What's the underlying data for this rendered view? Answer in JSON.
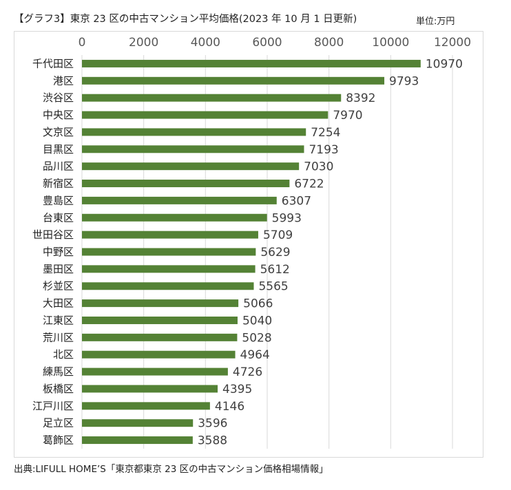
{
  "header": {
    "title": "【グラフ3】東京 23 区の中古マンション平均価格(2023 年 10 月 1 日更新)",
    "unit": "単位:万円"
  },
  "footer": {
    "source": "出典:LIFULL HOME’S「東京都東京 23 区の中古マンション価格相場情報」"
  },
  "colors": {
    "bar": "#548235",
    "grid": "#d9d9d9"
  },
  "chart_data": {
    "type": "bar",
    "orientation": "horizontal",
    "title": "東京 23 区の中古マンション平均価格(2023 年 10 月 1 日更新)",
    "xlim": [
      0,
      12000
    ],
    "x_ticks": [
      0,
      2000,
      4000,
      6000,
      8000,
      10000,
      12000
    ],
    "x_axis_position": "top",
    "grid": true,
    "categories": [
      "千代田区",
      "港区",
      "渋谷区",
      "中央区",
      "文京区",
      "目黒区",
      "品川区",
      "新宿区",
      "豊島区",
      "台東区",
      "世田谷区",
      "中野区",
      "墨田区",
      "杉並区",
      "大田区",
      "江東区",
      "荒川区",
      "北区",
      "練馬区",
      "板橋区",
      "江戸川区",
      "足立区",
      "葛飾区"
    ],
    "values": [
      10970,
      9793,
      8392,
      7970,
      7254,
      7193,
      7030,
      6722,
      6307,
      5993,
      5709,
      5629,
      5612,
      5565,
      5066,
      5040,
      5028,
      4964,
      4726,
      4395,
      4146,
      3596,
      3588
    ]
  }
}
